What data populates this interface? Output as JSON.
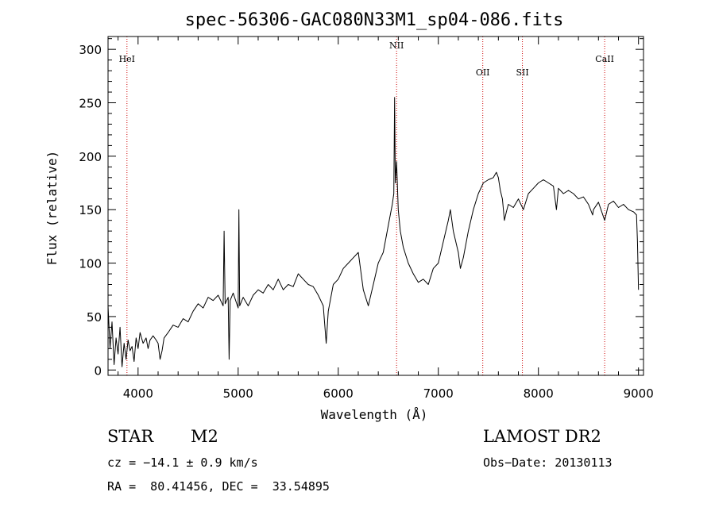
{
  "chart_data": {
    "type": "line",
    "title": "spec-56306-GAC080N33M1_sp04-086.fits",
    "xlabel": "Wavelength (Å)",
    "ylabel": "Flux (relative)",
    "xlim": [
      3700,
      9050
    ],
    "ylim": [
      -5,
      312
    ],
    "xticks": [
      4000,
      5000,
      6000,
      7000,
      8000,
      9000
    ],
    "yticks": [
      0,
      50,
      100,
      150,
      200,
      250,
      300
    ],
    "grid": false,
    "colors": {
      "spectrum": "#000000",
      "lines": "#cc0000"
    },
    "emission_lines": [
      {
        "name": "HeI",
        "wavelength": 3889
      },
      {
        "name": "NII",
        "wavelength": 6583
      },
      {
        "name": "OII",
        "wavelength": 7444
      },
      {
        "name": "SII",
        "wavelength": 7840
      },
      {
        "name": "CaII",
        "wavelength": 8662
      }
    ],
    "series": [
      {
        "values": [
          [
            3700,
            60
          ],
          [
            3720,
            20
          ],
          [
            3740,
            45
          ],
          [
            3760,
            5
          ],
          [
            3780,
            30
          ],
          [
            3800,
            15
          ],
          [
            3820,
            40
          ],
          [
            3840,
            3
          ],
          [
            3860,
            25
          ],
          [
            3880,
            10
          ],
          [
            3900,
            28
          ],
          [
            3920,
            18
          ],
          [
            3940,
            22
          ],
          [
            3960,
            8
          ],
          [
            3980,
            30
          ],
          [
            4000,
            20
          ],
          [
            4020,
            35
          ],
          [
            4050,
            25
          ],
          [
            4080,
            30
          ],
          [
            4100,
            20
          ],
          [
            4120,
            28
          ],
          [
            4150,
            32
          ],
          [
            4180,
            28
          ],
          [
            4200,
            25
          ],
          [
            4220,
            10
          ],
          [
            4240,
            18
          ],
          [
            4260,
            30
          ],
          [
            4300,
            35
          ],
          [
            4350,
            42
          ],
          [
            4400,
            40
          ],
          [
            4450,
            48
          ],
          [
            4500,
            45
          ],
          [
            4550,
            55
          ],
          [
            4600,
            62
          ],
          [
            4650,
            58
          ],
          [
            4700,
            68
          ],
          [
            4750,
            65
          ],
          [
            4800,
            70
          ],
          [
            4850,
            60
          ],
          [
            4860,
            130
          ],
          [
            4870,
            62
          ],
          [
            4900,
            68
          ],
          [
            4910,
            10
          ],
          [
            4920,
            65
          ],
          [
            4950,
            72
          ],
          [
            5000,
            58
          ],
          [
            5007,
            150
          ],
          [
            5015,
            60
          ],
          [
            5050,
            68
          ],
          [
            5100,
            60
          ],
          [
            5150,
            70
          ],
          [
            5200,
            75
          ],
          [
            5250,
            72
          ],
          [
            5300,
            80
          ],
          [
            5350,
            75
          ],
          [
            5400,
            85
          ],
          [
            5450,
            75
          ],
          [
            5500,
            80
          ],
          [
            5550,
            78
          ],
          [
            5600,
            90
          ],
          [
            5650,
            85
          ],
          [
            5700,
            80
          ],
          [
            5750,
            78
          ],
          [
            5800,
            70
          ],
          [
            5850,
            60
          ],
          [
            5880,
            25
          ],
          [
            5900,
            55
          ],
          [
            5950,
            80
          ],
          [
            6000,
            85
          ],
          [
            6050,
            95
          ],
          [
            6100,
            100
          ],
          [
            6150,
            105
          ],
          [
            6200,
            110
          ],
          [
            6250,
            75
          ],
          [
            6300,
            60
          ],
          [
            6350,
            80
          ],
          [
            6400,
            100
          ],
          [
            6450,
            110
          ],
          [
            6500,
            135
          ],
          [
            6540,
            155
          ],
          [
            6555,
            165
          ],
          [
            6563,
            255
          ],
          [
            6570,
            175
          ],
          [
            6583,
            195
          ],
          [
            6600,
            150
          ],
          [
            6620,
            130
          ],
          [
            6650,
            115
          ],
          [
            6700,
            100
          ],
          [
            6750,
            90
          ],
          [
            6800,
            82
          ],
          [
            6850,
            85
          ],
          [
            6900,
            80
          ],
          [
            6950,
            95
          ],
          [
            7000,
            100
          ],
          [
            7050,
            120
          ],
          [
            7100,
            140
          ],
          [
            7120,
            150
          ],
          [
            7150,
            130
          ],
          [
            7200,
            110
          ],
          [
            7220,
            95
          ],
          [
            7250,
            105
          ],
          [
            7300,
            130
          ],
          [
            7350,
            150
          ],
          [
            7400,
            165
          ],
          [
            7450,
            175
          ],
          [
            7500,
            178
          ],
          [
            7550,
            180
          ],
          [
            7580,
            185
          ],
          [
            7600,
            180
          ],
          [
            7620,
            168
          ],
          [
            7640,
            160
          ],
          [
            7660,
            140
          ],
          [
            7680,
            148
          ],
          [
            7700,
            155
          ],
          [
            7750,
            152
          ],
          [
            7800,
            160
          ],
          [
            7850,
            150
          ],
          [
            7900,
            165
          ],
          [
            7950,
            170
          ],
          [
            8000,
            175
          ],
          [
            8050,
            178
          ],
          [
            8100,
            175
          ],
          [
            8150,
            172
          ],
          [
            8180,
            150
          ],
          [
            8200,
            170
          ],
          [
            8250,
            165
          ],
          [
            8300,
            168
          ],
          [
            8350,
            165
          ],
          [
            8400,
            160
          ],
          [
            8450,
            162
          ],
          [
            8500,
            155
          ],
          [
            8542,
            145
          ],
          [
            8550,
            150
          ],
          [
            8600,
            157
          ],
          [
            8662,
            140
          ],
          [
            8700,
            155
          ],
          [
            8750,
            158
          ],
          [
            8800,
            152
          ],
          [
            8850,
            155
          ],
          [
            8900,
            150
          ],
          [
            8950,
            148
          ],
          [
            8980,
            145
          ],
          [
            8990,
            120
          ],
          [
            9000,
            75
          ]
        ]
      }
    ]
  },
  "info": {
    "object_class": "STAR",
    "subclass": "M2",
    "survey": "LAMOST DR2",
    "cz": "cz = −14.1 ± 0.9 km/s",
    "obs_date": "Obs−Date: 20130113",
    "coords": "RA =  80.41456, DEC =  33.54895"
  }
}
